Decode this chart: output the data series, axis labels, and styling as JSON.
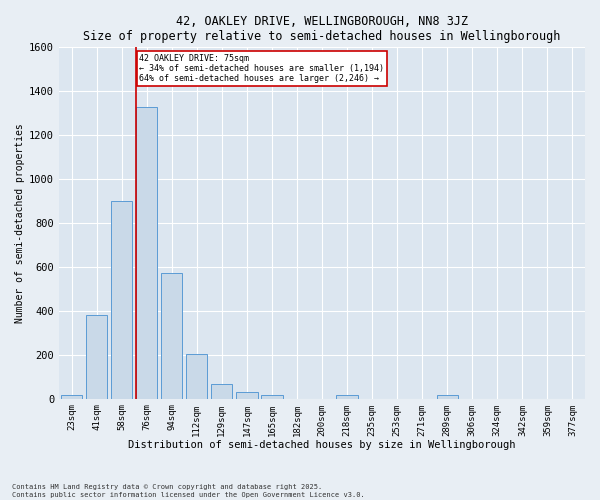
{
  "title": "42, OAKLEY DRIVE, WELLINGBOROUGH, NN8 3JZ",
  "subtitle": "Size of property relative to semi-detached houses in Wellingborough",
  "xlabel": "Distribution of semi-detached houses by size in Wellingborough",
  "ylabel": "Number of semi-detached properties",
  "bar_labels": [
    "23sqm",
    "41sqm",
    "58sqm",
    "76sqm",
    "94sqm",
    "112sqm",
    "129sqm",
    "147sqm",
    "165sqm",
    "182sqm",
    "200sqm",
    "218sqm",
    "235sqm",
    "253sqm",
    "271sqm",
    "289sqm",
    "306sqm",
    "324sqm",
    "342sqm",
    "359sqm",
    "377sqm"
  ],
  "bar_values": [
    18,
    380,
    900,
    1325,
    570,
    205,
    65,
    30,
    18,
    0,
    0,
    18,
    0,
    0,
    0,
    18,
    0,
    0,
    0,
    0,
    0
  ],
  "bar_color": "#c9d9e8",
  "bar_edge_color": "#5b9bd5",
  "property_line_x": 3,
  "property_sqm": 75,
  "property_label": "42 OAKLEY DRIVE: 75sqm",
  "annotation_line1": "← 34% of semi-detached houses are smaller (1,194)",
  "annotation_line2": "64% of semi-detached houses are larger (2,246) →",
  "ylim": [
    0,
    1600
  ],
  "yticks": [
    0,
    200,
    400,
    600,
    800,
    1000,
    1200,
    1400,
    1600
  ],
  "red_line_color": "#cc0000",
  "annotation_box_color": "#cc0000",
  "background_color": "#e8eef4",
  "plot_bg_color": "#dce6f0",
  "footer_line1": "Contains HM Land Registry data © Crown copyright and database right 2025.",
  "footer_line2": "Contains public sector information licensed under the Open Government Licence v3.0."
}
